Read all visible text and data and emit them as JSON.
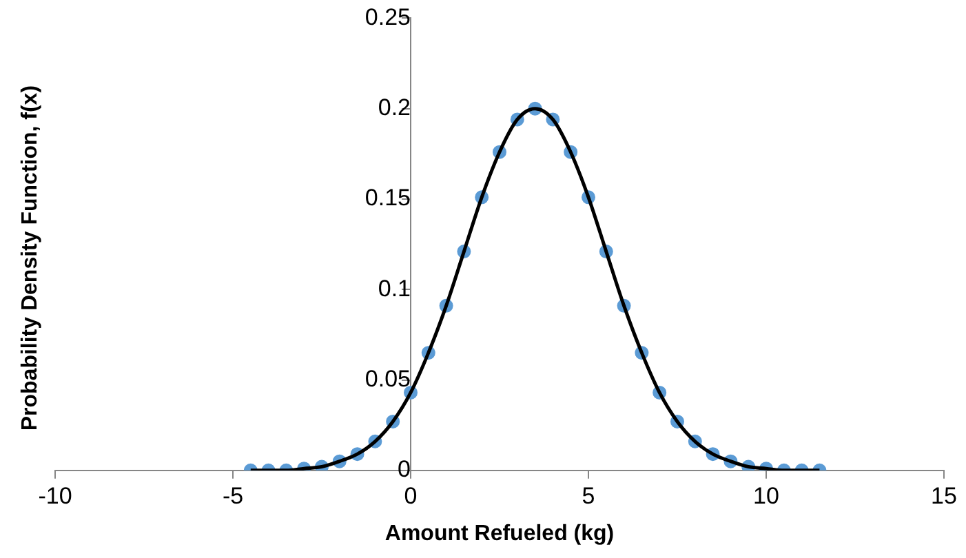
{
  "chart_data": {
    "type": "line",
    "xlabel": "Amount Refueled (kg)",
    "ylabel": "Probability Density Function, f(x)",
    "x": [
      -4.5,
      -4,
      -3.5,
      -3,
      -2.5,
      -2,
      -1.5,
      -1,
      -0.5,
      0,
      0.5,
      1,
      1.5,
      2,
      2.5,
      3,
      3.5,
      4,
      4.5,
      5,
      5.5,
      6,
      6.5,
      7,
      7.5,
      8,
      8.5,
      9,
      9.5,
      10,
      10.5,
      11,
      11.5
    ],
    "series": [
      {
        "type": "line",
        "color": "#000000",
        "marker": "none",
        "line_style": "solid",
        "values": [
          0,
          0,
          0,
          0.001,
          0.002,
          0.005,
          0.009,
          0.016,
          0.027,
          0.043,
          0.065,
          0.091,
          0.121,
          0.151,
          0.176,
          0.194,
          0.2,
          0.194,
          0.176,
          0.151,
          0.121,
          0.091,
          0.065,
          0.043,
          0.027,
          0.016,
          0.009,
          0.005,
          0.002,
          0.001,
          0,
          0,
          0
        ]
      },
      {
        "type": "scatter",
        "color": "#5b9bd5",
        "marker": "circle",
        "values": [
          0,
          0,
          0,
          0.001,
          0.002,
          0.005,
          0.009,
          0.016,
          0.027,
          0.043,
          0.065,
          0.091,
          0.121,
          0.151,
          0.176,
          0.194,
          0.2,
          0.194,
          0.176,
          0.151,
          0.121,
          0.091,
          0.065,
          0.043,
          0.027,
          0.016,
          0.009,
          0.005,
          0.002,
          0.001,
          0,
          0,
          0
        ]
      }
    ],
    "xlim": [
      -10,
      15
    ],
    "xticks": [
      -10,
      -5,
      0,
      5,
      10,
      15
    ],
    "ylim": [
      0,
      0.25
    ],
    "yticks": [
      0,
      0.05,
      0.1,
      0.15,
      0.2,
      0.25
    ]
  }
}
